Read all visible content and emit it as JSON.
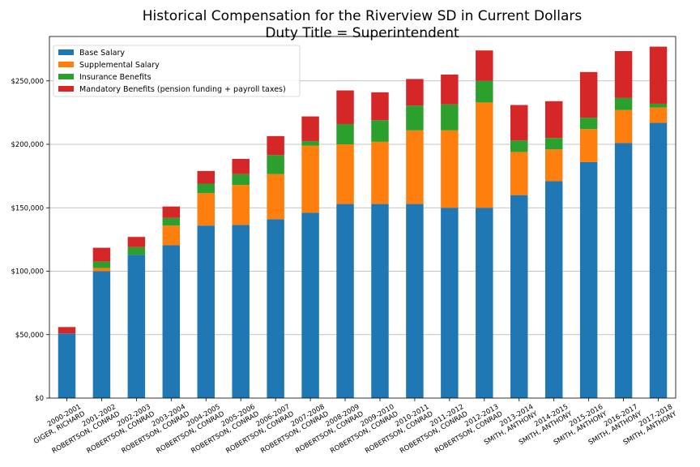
{
  "chart_data": {
    "type": "bar",
    "stacked": true,
    "title": "Historical Compensation for the Riverview SD in Current Dollars",
    "subtitle": "Duty Title = Superintendent",
    "xlabel": "",
    "ylabel": "",
    "ylim": [
      0,
      285000
    ],
    "y_ticks": [
      0,
      50000,
      100000,
      150000,
      200000,
      250000
    ],
    "y_tick_labels": [
      "$0",
      "$50,000",
      "$100,000",
      "$150,000",
      "$200,000",
      "$250,000"
    ],
    "grid": "horizontal",
    "legend_position": "top-left",
    "categories": [
      [
        "2000-2001",
        "GIGER, RICHARD"
      ],
      [
        "2001-2002",
        "ROBERTSON, CONRAD"
      ],
      [
        "2002-2003",
        "ROBERTSON, CONRAD"
      ],
      [
        "2003-2004",
        "ROBERTSON, CONRAD"
      ],
      [
        "2004-2005",
        "ROBERTSON, CONRAD"
      ],
      [
        "2005-2006",
        "ROBERTSON, CONRAD"
      ],
      [
        "2006-2007",
        "ROBERTSON, CONRAD"
      ],
      [
        "2007-2008",
        "ROBERTSON, CONRAD"
      ],
      [
        "2008-2009",
        "ROBERTSON, CONRAD"
      ],
      [
        "2009-2010",
        "ROBERTSON, CONRAD"
      ],
      [
        "2010-2011",
        "ROBERTSON, CONRAD"
      ],
      [
        "2011-2012",
        "ROBERTSON, CONRAD"
      ],
      [
        "2012-2013",
        "ROBERTSON, CONRAD"
      ],
      [
        "2013-2014",
        "SMITH, ANTHONY"
      ],
      [
        "2014-2015",
        "SMITH, ANTHONY"
      ],
      [
        "2015-2016",
        "SMITH, ANTHONY"
      ],
      [
        "2016-2017",
        "SMITH, ANTHONY"
      ],
      [
        "2017-2018",
        "SMITH, ANTHONY"
      ]
    ],
    "series": [
      {
        "name": "Base Salary",
        "color": "#1f77b4",
        "values": [
          51000,
          100000,
          113000,
          120500,
          136000,
          136500,
          141000,
          146000,
          153000,
          153000,
          153000,
          150000,
          150000,
          160000,
          171000,
          186000,
          201000,
          217000
        ]
      },
      {
        "name": "Supplemental Salary",
        "color": "#ff7f0e",
        "values": [
          0,
          2500,
          0,
          15500,
          25500,
          31500,
          35500,
          53000,
          47000,
          49000,
          58000,
          61000,
          83000,
          34000,
          25000,
          26000,
          26000,
          12000
        ]
      },
      {
        "name": "Insurance Benefits",
        "color": "#2ca02c",
        "values": [
          0,
          5000,
          6000,
          6000,
          7500,
          8500,
          15000,
          3500,
          16000,
          17000,
          19500,
          20500,
          17000,
          9000,
          9000,
          9000,
          9500,
          3000
        ]
      },
      {
        "name": "Mandatory Benefits (pension funding + payroll taxes)",
        "color": "#d62728",
        "values": [
          5000,
          11000,
          8000,
          9000,
          10000,
          12000,
          15000,
          19500,
          26500,
          22000,
          21000,
          23500,
          24000,
          28000,
          29000,
          36000,
          37000,
          45000
        ]
      }
    ]
  }
}
